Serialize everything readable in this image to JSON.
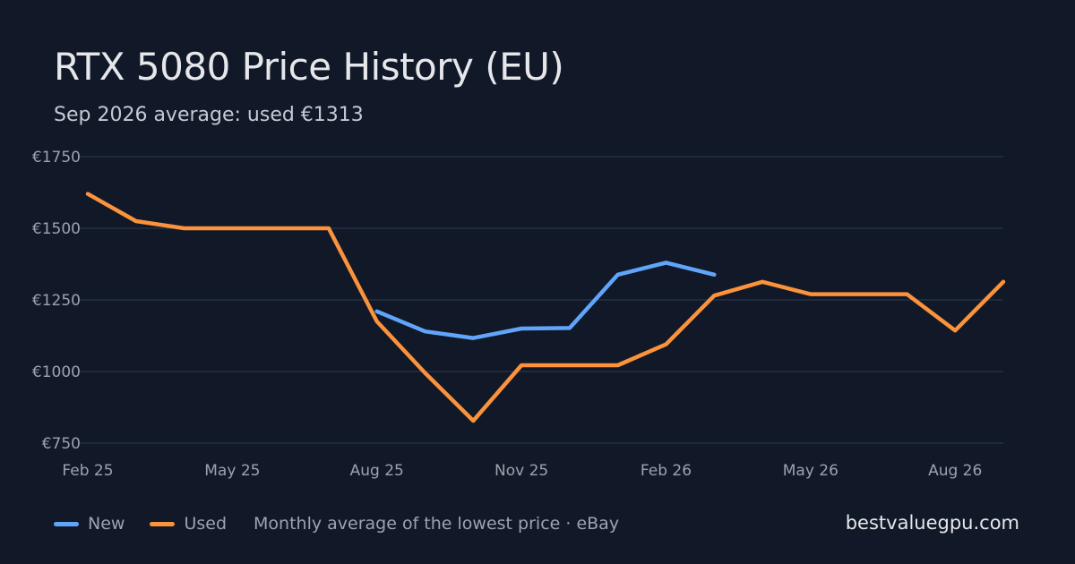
{
  "title": "RTX 5080 Price History (EU)",
  "subtitle": "Sep 2026 average: used €1313",
  "legend": {
    "note": "Monthly average of the lowest price · eBay"
  },
  "brand": "bestvaluegpu.com",
  "colors": {
    "background": "#111827",
    "new": "#60a5fa",
    "used": "#fb923c",
    "grid": "#263041"
  },
  "chart_data": {
    "type": "line",
    "title": "RTX 5080 Price History (EU)",
    "x": [
      "2025-02",
      "2025-03",
      "2025-04",
      "2025-05",
      "2025-06",
      "2025-07",
      "2025-08",
      "2025-09",
      "2025-10",
      "2025-11",
      "2025-12",
      "2026-01",
      "2026-02",
      "2026-03",
      "2026-04",
      "2026-05",
      "2026-06",
      "2026-07",
      "2026-08",
      "2026-09"
    ],
    "x_ticks": [
      {
        "x": "2025-02",
        "label": "Feb 25"
      },
      {
        "x": "2025-05",
        "label": "May 25"
      },
      {
        "x": "2025-08",
        "label": "Aug 25"
      },
      {
        "x": "2025-11",
        "label": "Nov 25"
      },
      {
        "x": "2026-02",
        "label": "Feb 26"
      },
      {
        "x": "2026-05",
        "label": "May 26"
      },
      {
        "x": "2026-08",
        "label": "Aug 26"
      }
    ],
    "y_ticks": [
      750,
      1000,
      1250,
      1500,
      1750
    ],
    "y_tick_labels": [
      "€750",
      "€1000",
      "€1250",
      "€1500",
      "€1750"
    ],
    "ylim": [
      750,
      1750
    ],
    "grid": true,
    "legend_position": "bottom-left",
    "series": [
      {
        "name": "New",
        "color": "#60a5fa",
        "values": [
          null,
          null,
          null,
          null,
          null,
          null,
          1210,
          1140,
          1117,
          1150,
          1152,
          1338,
          1380,
          1338,
          null,
          null,
          null,
          null,
          null,
          null
        ]
      },
      {
        "name": "Used",
        "color": "#fb923c",
        "values": [
          1620,
          1525,
          1500,
          1500,
          1500,
          1500,
          1175,
          995,
          828,
          1022,
          1022,
          1022,
          1095,
          1265,
          1313,
          1270,
          1270,
          1270,
          1143,
          1313
        ]
      }
    ]
  }
}
